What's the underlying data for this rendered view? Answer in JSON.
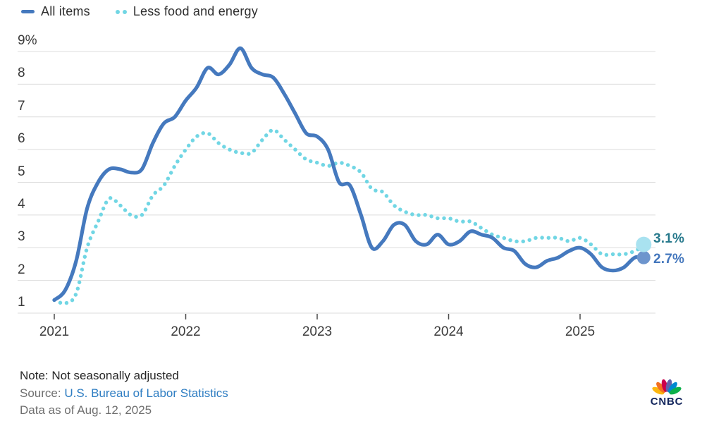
{
  "legend": {
    "items": [
      {
        "label": "All items",
        "style": "solid"
      },
      {
        "label": "Less food and energy",
        "style": "dotted"
      }
    ]
  },
  "chart_data": {
    "type": "line",
    "x_unit": "month",
    "x_start": "2021-01",
    "x_end": "2025-07",
    "x_tick_labels": [
      "2021",
      "2022",
      "2023",
      "2024",
      "2025"
    ],
    "y_tick_labels": [
      "9%",
      "8",
      "7",
      "6",
      "5",
      "4",
      "3",
      "2",
      "1"
    ],
    "ylim": [
      1,
      9
    ],
    "grid": true,
    "legend_position": "top-left",
    "gridline_color": "#dcdcdc",
    "tick_color": "#4a4a4a",
    "axis_text_color": "#3b3b3b",
    "series": [
      {
        "name": "All items",
        "style": "solid",
        "color": "#4579be",
        "end_label": "2.7%",
        "end_label_color": "#4477bd",
        "end_dot_color": "#6d95cd",
        "values": [
          1.4,
          1.7,
          2.6,
          4.2,
          5.0,
          5.4,
          5.4,
          5.3,
          5.4,
          6.2,
          6.8,
          7.0,
          7.5,
          7.9,
          8.5,
          8.3,
          8.6,
          9.1,
          8.5,
          8.3,
          8.2,
          7.7,
          7.1,
          6.5,
          6.4,
          6.0,
          5.0,
          4.9,
          4.0,
          3.0,
          3.2,
          3.7,
          3.7,
          3.2,
          3.1,
          3.4,
          3.1,
          3.2,
          3.5,
          3.4,
          3.3,
          3.0,
          2.9,
          2.5,
          2.4,
          2.6,
          2.7,
          2.9,
          3.0,
          2.8,
          2.4,
          2.3,
          2.4,
          2.7,
          2.7
        ]
      },
      {
        "name": "Less food and energy",
        "style": "dotted",
        "color": "#71d6e4",
        "end_label": "3.1%",
        "end_label_color": "#27798c",
        "end_dot_color": "#a9e2f0",
        "values": [
          1.4,
          1.3,
          1.6,
          3.0,
          3.8,
          4.5,
          4.3,
          4.0,
          4.0,
          4.6,
          4.9,
          5.5,
          6.0,
          6.4,
          6.5,
          6.2,
          6.0,
          5.9,
          5.9,
          6.3,
          6.6,
          6.3,
          6.0,
          5.7,
          5.6,
          5.5,
          5.6,
          5.5,
          5.3,
          4.8,
          4.7,
          4.3,
          4.1,
          4.0,
          4.0,
          3.9,
          3.9,
          3.8,
          3.8,
          3.6,
          3.4,
          3.3,
          3.2,
          3.2,
          3.3,
          3.3,
          3.3,
          3.2,
          3.3,
          3.1,
          2.8,
          2.8,
          2.8,
          2.9,
          3.1
        ]
      }
    ]
  },
  "footer": {
    "note": "Note: Not seasonally adjusted",
    "source_prefix": "Source: ",
    "source_link": "U.S. Bureau of Labor Statistics",
    "data_as_of": "Data as of Aug. 12, 2025"
  },
  "logo": {
    "text": "CNBC",
    "text_color": "#12255c",
    "feather_colors": [
      "#FCB711",
      "#F37021",
      "#CC004C",
      "#6460AA",
      "#0089D0",
      "#0DB14B"
    ]
  }
}
